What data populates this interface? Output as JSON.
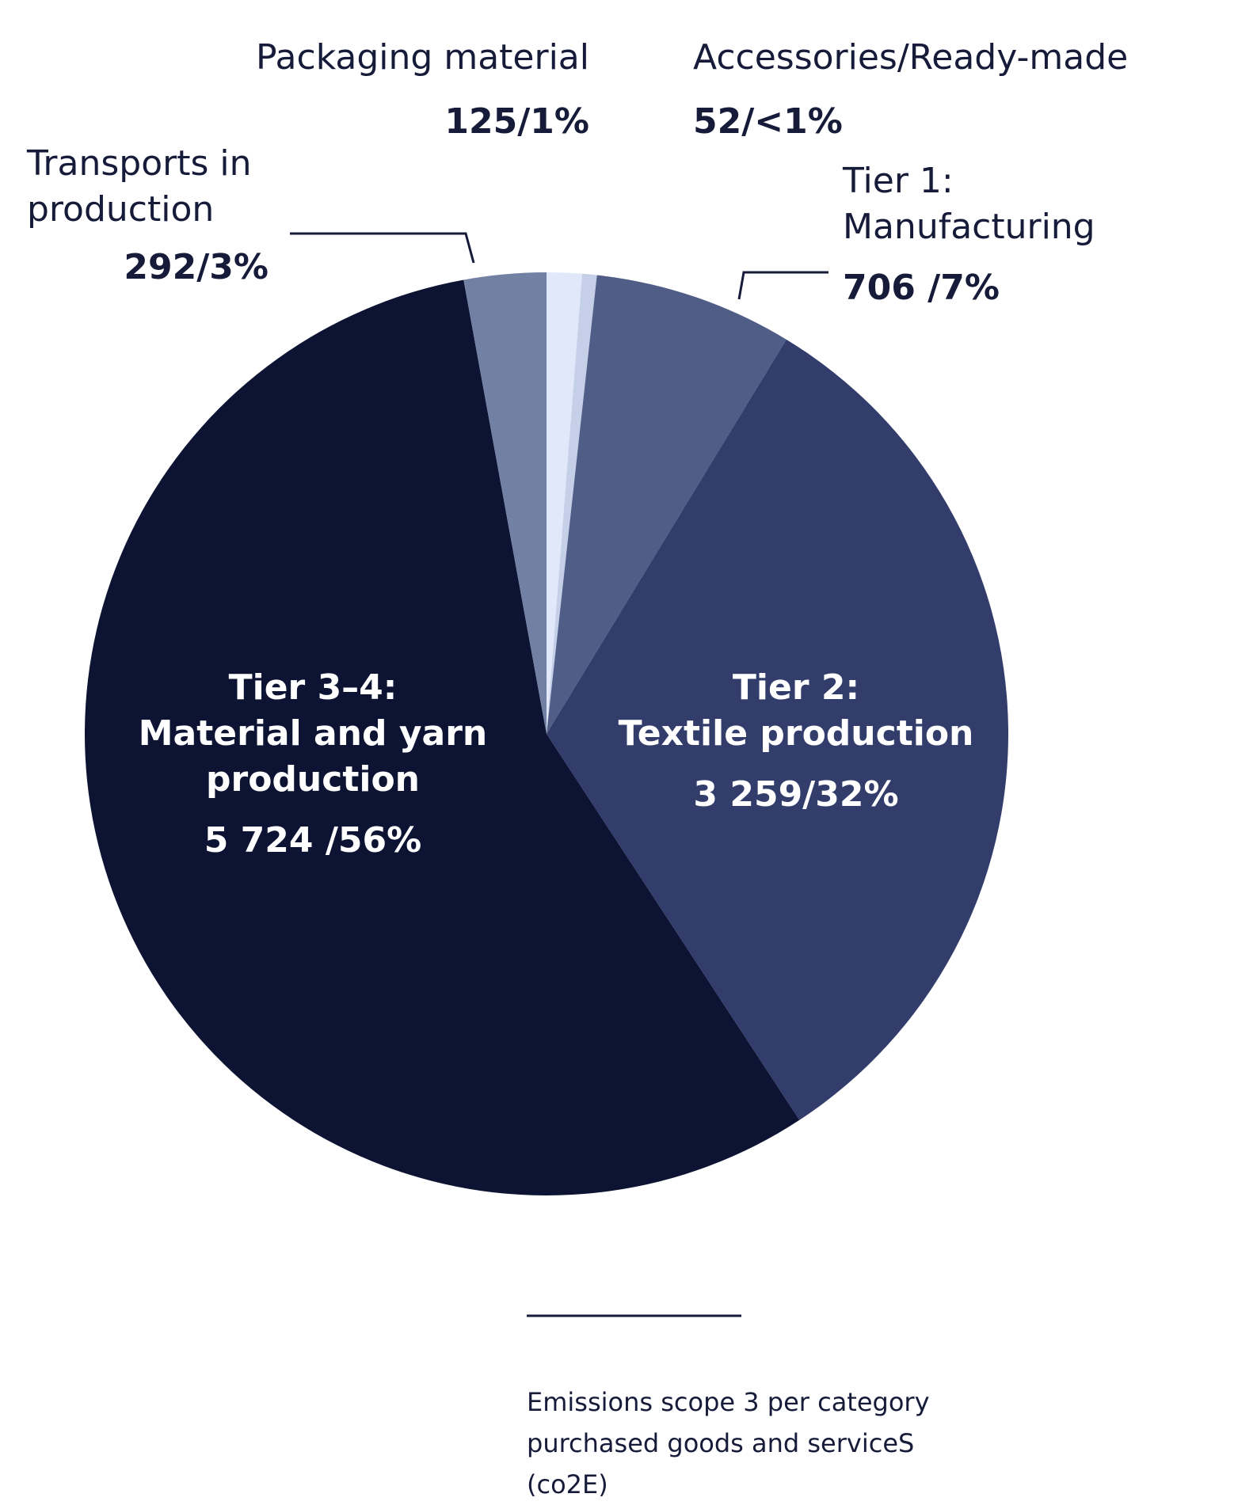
{
  "chart_data": {
    "type": "pie",
    "title": "Emissions scope 3 per category purchased goods and serviceS (co2E)",
    "categories": [
      "Packaging material",
      "Accessories/Ready-made",
      "Tier 1:\nManufacturing",
      "Tier 2:\nTextile production",
      "Tier 3–4:\nMaterial and yarn\nproduction",
      "Transports in\nproduction"
    ],
    "values": [
      125,
      52,
      706,
      3259,
      5724,
      292
    ],
    "value_labels": [
      "125/1%",
      "52/<1%",
      "706 /7%",
      "3 259/32%",
      "5 724 /56%",
      "292/3%"
    ],
    "colors": [
      "#e0e8fa",
      "#c5cfe8",
      "#4f5d87",
      "#323d6b",
      "#0d1433",
      "#7280a3"
    ]
  }
}
